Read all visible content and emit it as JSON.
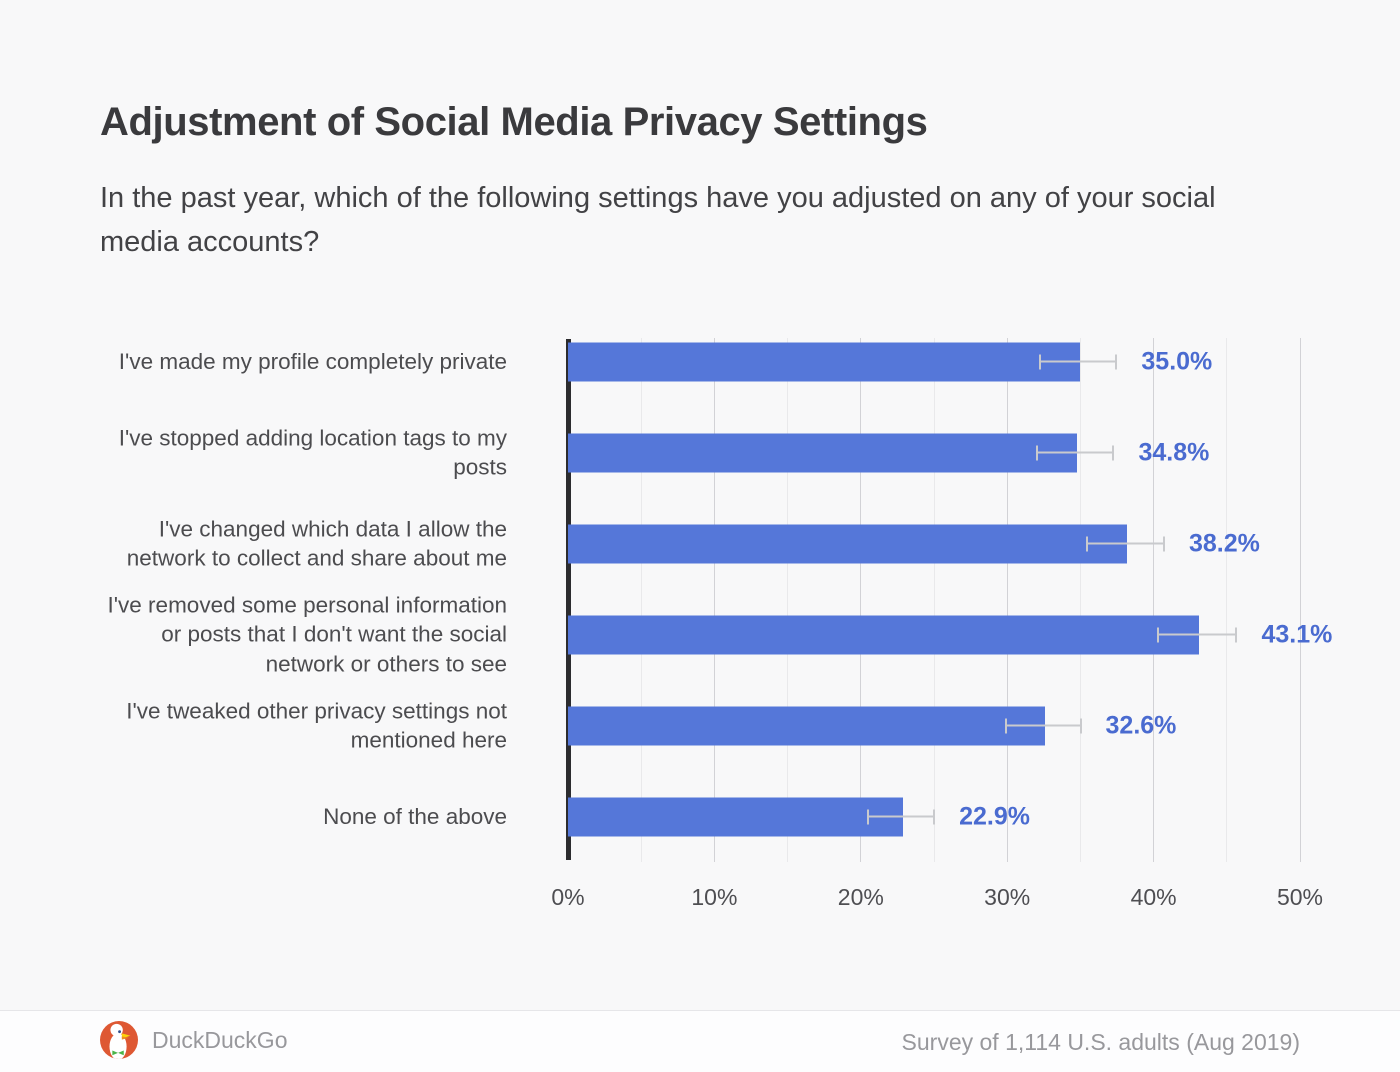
{
  "header": {
    "title": "Adjustment of Social Media Privacy Settings",
    "subtitle": "In the past year, which of the following settings have you adjusted on any of your social media accounts?"
  },
  "chart_data": {
    "type": "bar",
    "orientation": "horizontal",
    "title": "Adjustment of Social Media Privacy Settings",
    "categories": [
      "I've made my profile completely private",
      "I've stopped adding location tags to my posts",
      "I've changed which data I allow the network to collect and share about me",
      "I've removed some personal information or posts that I don't want the social network or others to see",
      "I've tweaked other privacy settings not mentioned here",
      "None of the above"
    ],
    "values": [
      35.0,
      34.8,
      38.2,
      43.1,
      32.6,
      22.9
    ],
    "value_labels": [
      "35.0%",
      "34.8%",
      "38.2%",
      "43.1%",
      "32.6%",
      "22.9%"
    ],
    "errors": [
      2.8,
      2.8,
      2.85,
      2.9,
      2.75,
      2.45
    ],
    "x_ticks": [
      "0%",
      "10%",
      "20%",
      "30%",
      "40%",
      "50%"
    ],
    "xlim": [
      0,
      50
    ],
    "grid_minor_step": 5,
    "grid_major_step": 10,
    "grid": "on",
    "legend": "none",
    "bar_color": "#5577d9",
    "value_label_color": "#4a6bd0",
    "axis_line_color": "#2c2c2f"
  },
  "footer": {
    "brand": "DuckDuckGo",
    "logo_icon": "duckduckgo-duck-logo",
    "logo_color": "#DE5833",
    "source": "Survey of 1,114 U.S. adults (Aug 2019)"
  }
}
